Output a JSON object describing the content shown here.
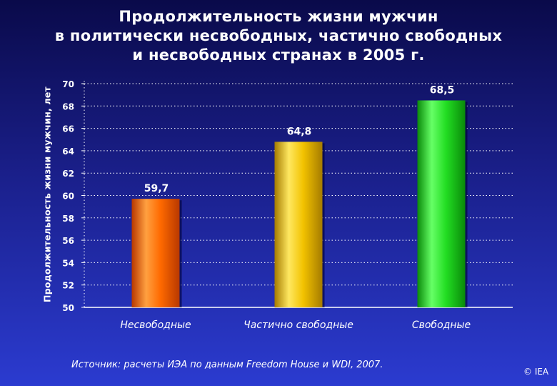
{
  "chart_data": {
    "type": "bar",
    "title_lines": [
      "Продолжительность жизни мужчин",
      "в политически несвободных, частично свободных",
      "и несвободных странах в 2005 г."
    ],
    "ylabel": "Продолжительность жизни мужчин, лет",
    "xlabel": "",
    "categories": [
      "Несвободные",
      "Частично свободные",
      "Свободные"
    ],
    "values": [
      59.7,
      64.8,
      68.5
    ],
    "value_labels": [
      "59,7",
      "64,8",
      "68,5"
    ],
    "bar_colors": [
      {
        "light": "#ffa040",
        "mid": "#ff6a00",
        "dark": "#b83800"
      },
      {
        "light": "#ffe860",
        "mid": "#f2c200",
        "dark": "#a57b00"
      },
      {
        "light": "#66ff66",
        "mid": "#22dd22",
        "dark": "#0a8a0a"
      }
    ],
    "ylim": [
      50,
      70
    ],
    "yticks": [
      50,
      52,
      54,
      56,
      58,
      60,
      62,
      64,
      66,
      68,
      70
    ],
    "grid": true,
    "legend": "none"
  },
  "source": "Источник:  расчеты ИЭА по данным Freedom House и WDI, 2007.",
  "copyright": "© IEA"
}
